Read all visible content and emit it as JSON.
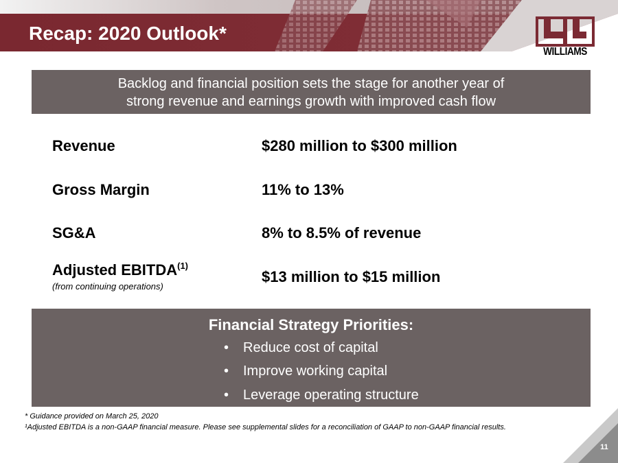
{
  "slide": {
    "title": "Recap: 2020 Outlook*",
    "logo_text": "WILLIAMS",
    "tagline": {
      "line1": "Backlog and financial position sets the stage for another year of",
      "line2": "strong revenue and earnings growth with improved cash flow"
    },
    "metrics": [
      {
        "label": "Revenue",
        "value": "$280 million  to $300 million"
      },
      {
        "label": "Gross Margin",
        "value": "11% to 13%"
      },
      {
        "label": "SG&A",
        "value": "8% to 8.5% of revenue"
      },
      {
        "label": "Adjusted EBITDA",
        "superscript": "(1)",
        "note": "(from continuing operations)",
        "value": "$13 million to $15 million"
      }
    ],
    "priorities": {
      "title": "Financial Strategy Priorities:",
      "bullet": "•",
      "items": [
        "Reduce cost of capital",
        "Improve working capital",
        "Leverage operating structure"
      ]
    },
    "footnotes": [
      "*  Guidance provided on March 25, 2020",
      "¹Adjusted EBITDA is a non-GAAP financial measure. Please see supplemental slides for a reconciliation of GAAP to non-GAAP financial results."
    ],
    "page_number": "11"
  },
  "colors": {
    "header_maroon": "#7b2a33",
    "panel_gray": "#6b6262",
    "corner_gray": "#c9c9c9"
  }
}
